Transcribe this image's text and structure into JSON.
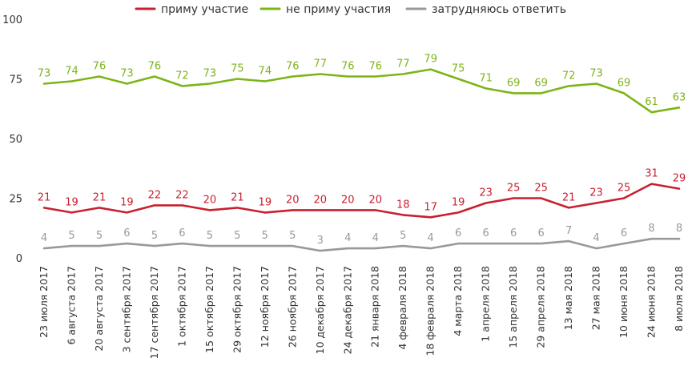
{
  "chart_data": {
    "type": "line",
    "title": "",
    "xlabel": "",
    "ylabel": "",
    "ylim": [
      0,
      100
    ],
    "yticks": [
      0,
      25,
      50,
      75,
      100
    ],
    "grid": false,
    "legend_position": "top",
    "categories": [
      "23 июля 2017",
      "6 августа 2017",
      "20 августа 2017",
      "3 сентября 2017",
      "17 сентября 2017",
      "1 октября 2017",
      "15 октября 2017",
      "29 октября 2017",
      "12 ноября 2017",
      "26 ноября 2017",
      "10 декабря 2017",
      "24 декабря 2017",
      "21 января 2018",
      "4 февраля 2018",
      "18 февраля 2018",
      "4 марта 2018",
      "1 апреля 2018",
      "15 апреля 2018",
      "29 апреля 2018",
      "13 мая 2018",
      "27 мая 2018",
      "10 июня 2018",
      "24 июня 2018",
      "8 июля 2018"
    ],
    "series": [
      {
        "name": "приму участие",
        "color": "#c8202f",
        "values": [
          21,
          19,
          21,
          19,
          22,
          22,
          20,
          21,
          19,
          20,
          20,
          20,
          20,
          18,
          17,
          19,
          23,
          25,
          25,
          21,
          23,
          25,
          31,
          29
        ]
      },
      {
        "name": "не приму участия",
        "color": "#7cb518",
        "values": [
          73,
          74,
          76,
          73,
          76,
          72,
          73,
          75,
          74,
          76,
          77,
          76,
          76,
          77,
          79,
          75,
          71,
          69,
          69,
          72,
          73,
          69,
          61,
          63
        ]
      },
      {
        "name": "затрудняюсь ответить",
        "color": "#999999",
        "values": [
          4,
          5,
          5,
          6,
          5,
          6,
          5,
          5,
          5,
          5,
          3,
          4,
          4,
          5,
          4,
          6,
          6,
          6,
          6,
          7,
          4,
          6,
          8,
          8
        ]
      }
    ]
  }
}
